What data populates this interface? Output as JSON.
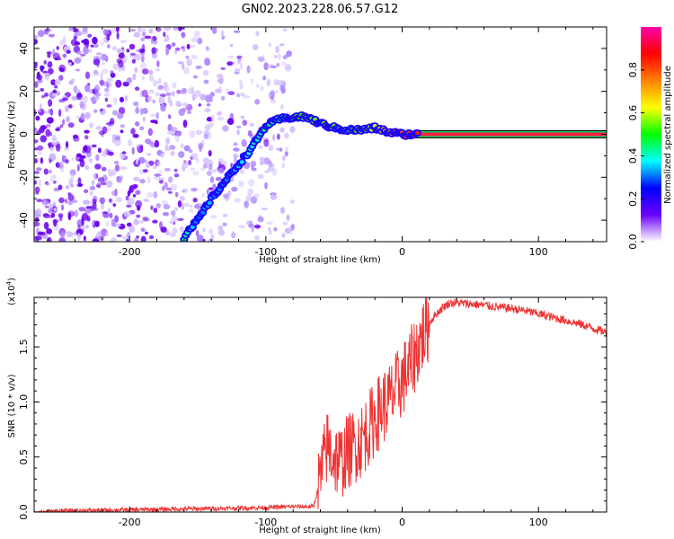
{
  "figure": {
    "title": "GN02.2023.228.06.57.G12"
  },
  "chart_data": [
    {
      "type": "heatmap",
      "title": "GN02.2023.228.06.57.G12",
      "xlabel": "Height of straight line (km)",
      "ylabel": "Frequency (Hz)",
      "xlim": [
        -270,
        150
      ],
      "ylim": [
        -50,
        50
      ],
      "x_ticks": [
        -200,
        -100,
        0,
        100
      ],
      "x_tick_labels": [
        "-200",
        "-100",
        "0",
        "100"
      ],
      "y_ticks": [
        -40,
        -20,
        0,
        20,
        40
      ],
      "y_tick_labels": [
        "-40",
        "-20",
        "0",
        "20",
        "40"
      ],
      "colorbar": {
        "label": "Normalized spectral amplitude",
        "range": [
          0,
          1
        ],
        "ticks": [
          0.0,
          0.2,
          0.4,
          0.6,
          0.8
        ],
        "tick_labels": [
          "0.0",
          "0.2",
          "0.4",
          "0.6",
          "0.8"
        ],
        "colors": [
          "#ffffff",
          "#6a00ff",
          "#0000ff",
          "#00ffff",
          "#00ff00",
          "#ffff00",
          "#ff8000",
          "#ff0000",
          "#ff00aa"
        ]
      },
      "ridge": {
        "x": [
          -160,
          -150,
          -140,
          -130,
          -120,
          -110,
          -100,
          -90,
          -80,
          -70,
          -60,
          -50,
          -40,
          -30,
          -20,
          -10,
          0,
          10,
          20,
          50,
          100,
          150
        ],
        "y": [
          -48,
          -40,
          -30,
          -22,
          -14,
          -6,
          4,
          7,
          8,
          8,
          5,
          3,
          2,
          2,
          3,
          1,
          0,
          0,
          0,
          0,
          0,
          0
        ],
        "amplitude": [
          0.45,
          0.3,
          0.35,
          0.3,
          0.35,
          0.4,
          0.45,
          0.45,
          0.5,
          0.55,
          0.55,
          0.55,
          0.55,
          0.55,
          0.6,
          0.7,
          0.8,
          0.85,
          0.85,
          0.85,
          0.85,
          0.85
        ]
      },
      "grid": false
    },
    {
      "type": "line",
      "xlabel": "Height of straight line (km)",
      "ylabel": "SNR (10 * v/v)",
      "y_multiplier_label": "(x10",
      "y_multiplier_exp": "4",
      "xlim": [
        -270,
        150
      ],
      "ylim": [
        0,
        1.95
      ],
      "x_ticks": [
        -200,
        -100,
        0,
        100
      ],
      "x_tick_labels": [
        "-200",
        "-100",
        "0",
        "100"
      ],
      "y_ticks": [
        0.0,
        0.5,
        1.0,
        1.5
      ],
      "y_tick_labels": [
        "0.0",
        "0.5",
        "1.0",
        "1.5"
      ],
      "series": [
        {
          "color": "#ee3333",
          "x": [
            -270,
            -250,
            -200,
            -150,
            -100,
            -80,
            -65,
            -60,
            -55,
            -50,
            -45,
            -40,
            -35,
            -30,
            -25,
            -20,
            -15,
            -10,
            -5,
            0,
            5,
            10,
            15,
            20,
            25,
            30,
            35,
            40,
            50,
            60,
            70,
            80,
            90,
            100,
            110,
            120,
            130,
            140,
            150
          ],
          "y": [
            0.0,
            0.01,
            0.02,
            0.03,
            0.04,
            0.05,
            0.05,
            0.3,
            0.6,
            0.5,
            0.45,
            0.55,
            0.6,
            0.65,
            0.75,
            0.85,
            0.95,
            1.0,
            1.1,
            1.2,
            1.3,
            1.45,
            1.6,
            1.72,
            1.8,
            1.86,
            1.9,
            1.9,
            1.89,
            1.88,
            1.86,
            1.85,
            1.83,
            1.8,
            1.77,
            1.74,
            1.71,
            1.67,
            1.63
          ]
        }
      ],
      "grid": false
    }
  ]
}
